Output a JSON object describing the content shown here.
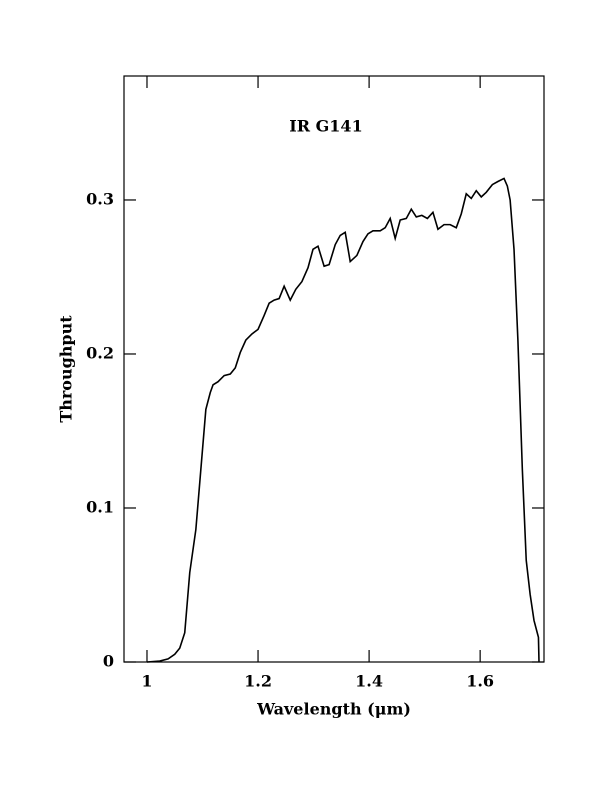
{
  "chart_data": {
    "type": "line",
    "title": "IR G141",
    "xlabel": "Wavelength (μm)",
    "ylabel": "Throughput",
    "x": [
      1.0,
      1.023,
      1.038,
      1.05,
      1.059,
      1.068,
      1.077,
      1.088,
      1.097,
      1.106,
      1.114,
      1.119,
      1.128,
      1.139,
      1.15,
      1.159,
      1.168,
      1.178,
      1.189,
      1.2,
      1.211,
      1.22,
      1.229,
      1.238,
      1.247,
      1.258,
      1.268,
      1.279,
      1.29,
      1.299,
      1.308,
      1.319,
      1.328,
      1.339,
      1.348,
      1.357,
      1.366,
      1.378,
      1.389,
      1.398,
      1.407,
      1.42,
      1.429,
      1.438,
      1.447,
      1.456,
      1.467,
      1.476,
      1.485,
      1.495,
      1.505,
      1.515,
      1.524,
      1.535,
      1.546,
      1.557,
      1.566,
      1.575,
      1.584,
      1.593,
      1.602,
      1.611,
      1.622,
      1.632,
      1.643,
      1.649,
      1.654,
      1.661,
      1.668,
      1.676,
      1.683,
      1.69,
      1.697,
      1.705,
      1.706
    ],
    "series": [
      {
        "color": "#000000",
        "values": [
          0,
          0.0006,
          0.002,
          0.005,
          0.009,
          0.019,
          0.058,
          0.086,
          0.125,
          0.164,
          0.175,
          0.18,
          0.182,
          0.186,
          0.187,
          0.191,
          0.201,
          0.209,
          0.213,
          0.216,
          0.225,
          0.233,
          0.235,
          0.236,
          0.244,
          0.235,
          0.242,
          0.247,
          0.256,
          0.268,
          0.27,
          0.257,
          0.258,
          0.271,
          0.277,
          0.279,
          0.26,
          0.264,
          0.273,
          0.278,
          0.28,
          0.28,
          0.282,
          0.288,
          0.275,
          0.287,
          0.288,
          0.294,
          0.289,
          0.29,
          0.288,
          0.292,
          0.281,
          0.284,
          0.284,
          0.282,
          0.291,
          0.304,
          0.301,
          0.306,
          0.302,
          0.305,
          0.31,
          0.312,
          0.314,
          0.309,
          0.3,
          0.268,
          0.209,
          0.125,
          0.066,
          0.044,
          0.027,
          0.016,
          0
        ]
      }
    ],
    "xlim": [
      0.9586,
      1.715
    ],
    "ylim": [
      0,
      0.3805
    ],
    "xticks": [
      1,
      1.2,
      1.4,
      1.6
    ],
    "yticks": [
      0,
      0.1,
      0.2,
      0.3
    ]
  }
}
